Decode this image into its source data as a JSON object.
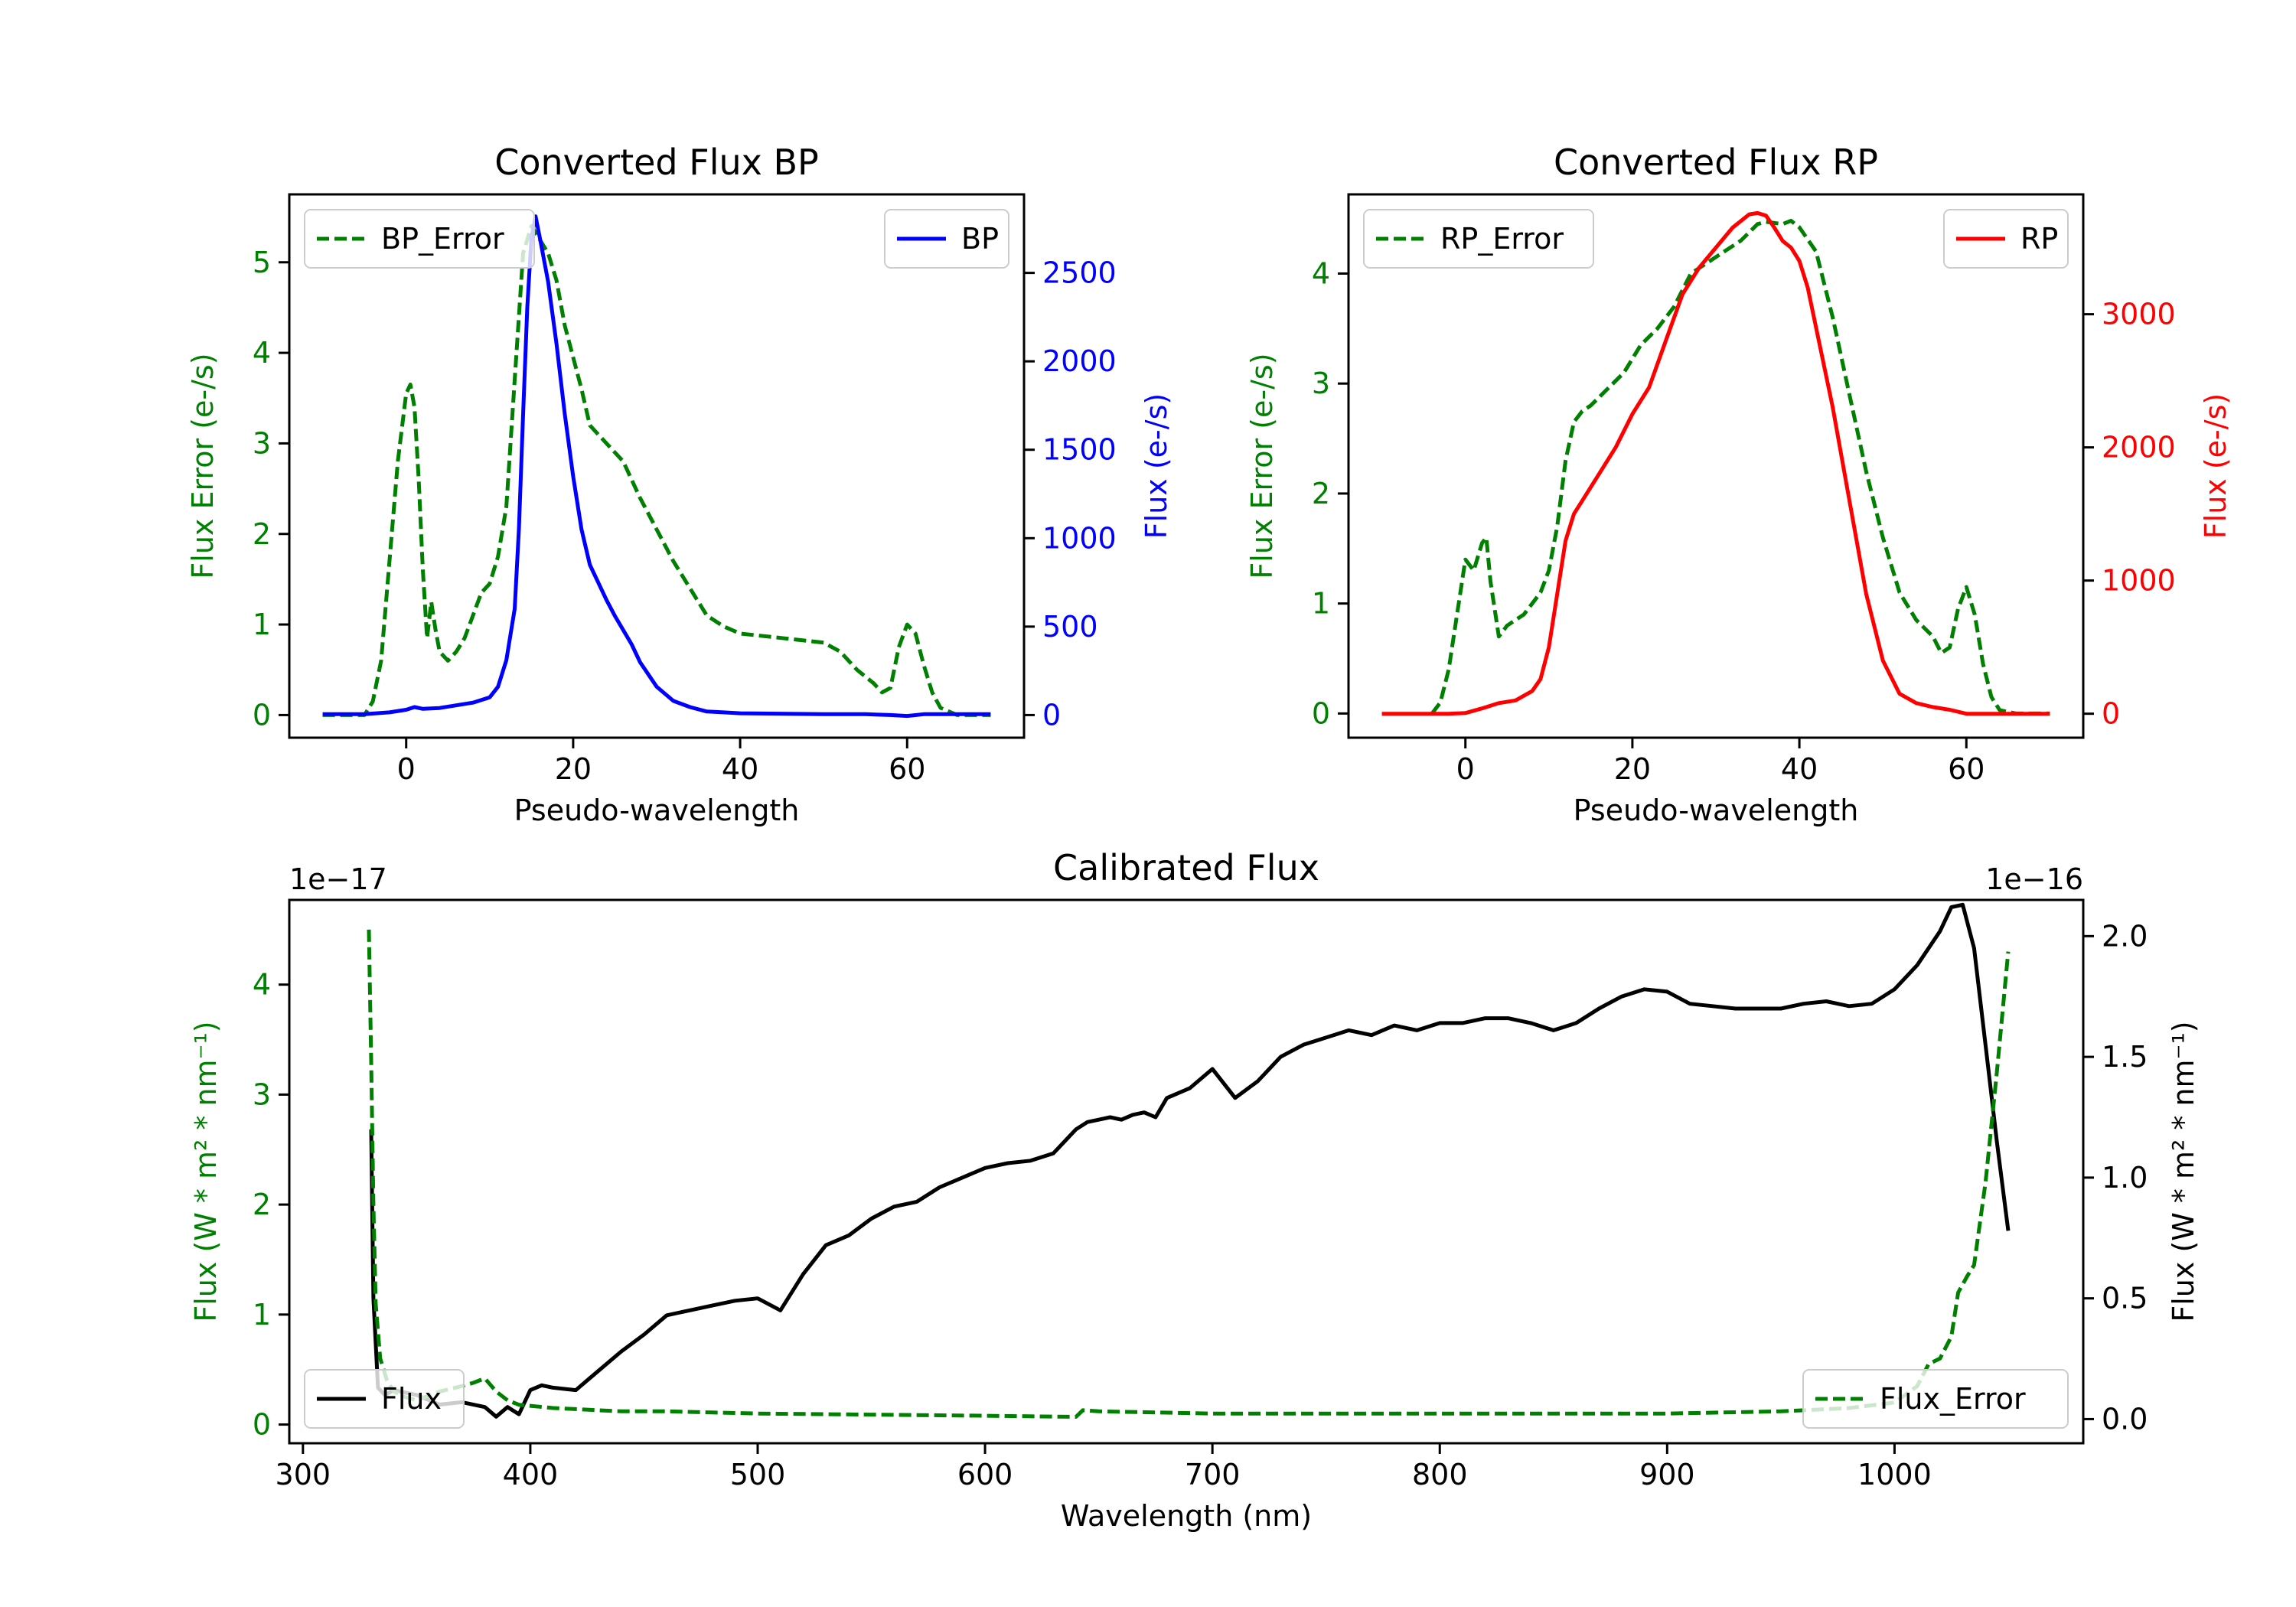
{
  "chart_data": [
    {
      "id": "bp",
      "type": "line",
      "title": "Converted Flux BP",
      "xlabel": "Pseudo-wavelength",
      "xlim": [
        -14,
        74
      ],
      "xticks": [
        0,
        20,
        40,
        60
      ],
      "xtick_labels": [
        "0",
        "20",
        "40",
        "60"
      ],
      "left_axis": {
        "label": "Flux Error (e-/s)",
        "color": "#008000",
        "ylim": [
          -0.25,
          5.75
        ],
        "ticks": [
          0,
          1,
          2,
          3,
          4,
          5
        ],
        "tick_labels": [
          "0",
          "1",
          "2",
          "3",
          "4",
          "5"
        ]
      },
      "right_axis": {
        "label": "Flux (e-/s)",
        "color": "#0000ff",
        "ylim": [
          -128,
          2944
        ],
        "ticks": [
          0,
          500,
          1000,
          1500,
          2000,
          2500
        ],
        "tick_labels": [
          "0",
          "500",
          "1000",
          "1500",
          "2000",
          "2500"
        ]
      },
      "series": [
        {
          "name": "BP_Error",
          "axis": "left",
          "color": "#008000",
          "dashed": true,
          "x": [
            -10,
            -5,
            -4,
            -3,
            -2,
            -1,
            0,
            0.5,
            1,
            1.5,
            2,
            2.5,
            3,
            3.5,
            4,
            5,
            6,
            7,
            8,
            9,
            10,
            11,
            12,
            13,
            14,
            15,
            16,
            17,
            18,
            19,
            20,
            21,
            22,
            23,
            24,
            25,
            26,
            27,
            28,
            30,
            32,
            34,
            36,
            38,
            40,
            45,
            50,
            52,
            54,
            56,
            57,
            58,
            59,
            60,
            61,
            62,
            63,
            64,
            66,
            70
          ],
          "y": [
            0,
            0,
            0.15,
            0.6,
            1.7,
            2.8,
            3.55,
            3.65,
            3.4,
            2.6,
            1.6,
            0.85,
            1.25,
            0.95,
            0.7,
            0.6,
            0.7,
            0.85,
            1.1,
            1.35,
            1.45,
            1.75,
            2.3,
            3.7,
            5.1,
            5.4,
            5.25,
            5.1,
            4.8,
            4.3,
            3.95,
            3.6,
            3.2,
            3.1,
            3.0,
            2.9,
            2.8,
            2.6,
            2.4,
            2.05,
            1.7,
            1.4,
            1.1,
            0.98,
            0.9,
            0.85,
            0.8,
            0.7,
            0.5,
            0.35,
            0.25,
            0.3,
            0.75,
            1.0,
            0.9,
            0.55,
            0.25,
            0.08,
            0,
            0
          ]
        },
        {
          "name": "BP",
          "axis": "right",
          "color": "#0000ff",
          "dashed": false,
          "x": [
            -10,
            -5,
            -2,
            0,
            1,
            2,
            4,
            6,
            8,
            10,
            11,
            12,
            13,
            13.5,
            14,
            14.5,
            15,
            15.5,
            16,
            17,
            18,
            19,
            20,
            21,
            22,
            23,
            24,
            25,
            26,
            27,
            28,
            30,
            32,
            34,
            36,
            38,
            40,
            50,
            55,
            58,
            60,
            62,
            65,
            70
          ],
          "y": [
            5,
            5,
            15,
            30,
            45,
            35,
            40,
            55,
            70,
            100,
            160,
            310,
            600,
            1050,
            1700,
            2300,
            2700,
            2820,
            2700,
            2450,
            2100,
            1700,
            1350,
            1050,
            850,
            750,
            650,
            560,
            480,
            400,
            300,
            160,
            80,
            45,
            20,
            15,
            10,
            5,
            5,
            0,
            -5,
            5,
            5,
            5
          ]
        }
      ],
      "legends": [
        {
          "position": "upper left",
          "entries": [
            "BP_Error"
          ]
        },
        {
          "position": "upper right",
          "entries": [
            "BP"
          ]
        }
      ]
    },
    {
      "id": "rp",
      "type": "line",
      "title": "Converted Flux RP",
      "xlabel": "Pseudo-wavelength",
      "xlim": [
        -14,
        74
      ],
      "xticks": [
        0,
        20,
        40,
        60
      ],
      "xtick_labels": [
        "0",
        "20",
        "40",
        "60"
      ],
      "left_axis": {
        "label": "Flux Error (e-/s)",
        "color": "#008000",
        "ylim": [
          -0.22,
          4.72
        ],
        "ticks": [
          0,
          1,
          2,
          3,
          4
        ],
        "tick_labels": [
          "0",
          "1",
          "2",
          "3",
          "4"
        ]
      },
      "right_axis": {
        "label": "Flux (e-/s)",
        "color": "#ff0000",
        "ylim": [
          -180,
          3900
        ],
        "ticks": [
          0,
          1000,
          2000,
          3000
        ],
        "tick_labels": [
          "0",
          "1000",
          "2000",
          "3000"
        ]
      },
      "series": [
        {
          "name": "RP_Error",
          "axis": "left",
          "color": "#008000",
          "dashed": true,
          "x": [
            -4,
            -3,
            -2,
            -1,
            0,
            1,
            2,
            2.5,
            3,
            4,
            5,
            6,
            7,
            8,
            9,
            10,
            11,
            12,
            13,
            14,
            15,
            17,
            19,
            21,
            23,
            25,
            27,
            29,
            31,
            33,
            35,
            36,
            37,
            38,
            39,
            40,
            42,
            44,
            46,
            48,
            50,
            52,
            54,
            56,
            57,
            58,
            59,
            60,
            61,
            62,
            63,
            64,
            66,
            70
          ],
          "y": [
            0,
            0.1,
            0.4,
            0.9,
            1.4,
            1.3,
            1.55,
            1.6,
            1.2,
            0.7,
            0.8,
            0.85,
            0.9,
            1.0,
            1.1,
            1.3,
            1.7,
            2.3,
            2.65,
            2.75,
            2.8,
            2.95,
            3.1,
            3.35,
            3.5,
            3.7,
            4.0,
            4.1,
            4.2,
            4.3,
            4.45,
            4.47,
            4.46,
            4.45,
            4.48,
            4.42,
            4.2,
            3.6,
            2.9,
            2.2,
            1.6,
            1.1,
            0.85,
            0.7,
            0.55,
            0.6,
            0.95,
            1.15,
            0.9,
            0.45,
            0.15,
            0.03,
            0,
            0
          ]
        },
        {
          "name": "RP",
          "axis": "right",
          "color": "#ff0000",
          "dashed": false,
          "x": [
            -10,
            -5,
            -2,
            0,
            2,
            4,
            6,
            8,
            9,
            10,
            11,
            12,
            13,
            14,
            16,
            18,
            20,
            22,
            24,
            26,
            28,
            30,
            32,
            34,
            35,
            36,
            37,
            38,
            39,
            40,
            41,
            42,
            44,
            46,
            48,
            50,
            52,
            54,
            56,
            58,
            60,
            62,
            65,
            70
          ],
          "y": [
            0,
            0,
            0,
            5,
            40,
            80,
            100,
            170,
            260,
            500,
            900,
            1300,
            1500,
            1600,
            1800,
            2000,
            2250,
            2450,
            2800,
            3150,
            3350,
            3500,
            3650,
            3750,
            3760,
            3740,
            3650,
            3550,
            3500,
            3400,
            3200,
            2900,
            2300,
            1600,
            900,
            400,
            150,
            80,
            50,
            30,
            0,
            0,
            0,
            0
          ]
        }
      ],
      "legends": [
        {
          "position": "upper left",
          "entries": [
            "RP_Error"
          ]
        },
        {
          "position": "upper right",
          "entries": [
            "RP"
          ]
        }
      ]
    },
    {
      "id": "cal",
      "type": "line",
      "title": "Calibrated Flux",
      "xlabel": "Wavelength (nm)",
      "xlim": [
        294,
        1083
      ],
      "xticks": [
        300,
        400,
        500,
        600,
        700,
        800,
        900,
        1000
      ],
      "xtick_labels": [
        "300",
        "400",
        "500",
        "600",
        "700",
        "800",
        "900",
        "1000"
      ],
      "left_axis": {
        "label": "Flux (W * m² * nm⁻¹)",
        "color": "#008000",
        "ylim": [
          -0.17,
          4.77
        ],
        "ticks": [
          0,
          1,
          2,
          3,
          4
        ],
        "tick_labels": [
          "0",
          "1",
          "2",
          "3",
          "4"
        ],
        "offset_text": "1e−17"
      },
      "right_axis": {
        "label": "Flux (W * m² * nm⁻¹)",
        "color": "#000000",
        "ylim": [
          -0.1,
          2.15
        ],
        "ticks": [
          0.0,
          0.5,
          1.0,
          1.5,
          2.0
        ],
        "tick_labels": [
          "0.0",
          "0.5",
          "1.0",
          "1.5",
          "2.0"
        ],
        "offset_text": "1e−16"
      },
      "series": [
        {
          "name": "Flux",
          "axis": "right",
          "color": "#000000",
          "dashed": false,
          "x": [
            330,
            331,
            333,
            336,
            340,
            350,
            360,
            370,
            380,
            385,
            390,
            395,
            400,
            405,
            410,
            420,
            430,
            440,
            450,
            460,
            470,
            480,
            490,
            500,
            510,
            520,
            530,
            540,
            550,
            560,
            570,
            580,
            590,
            600,
            610,
            620,
            630,
            640,
            645,
            650,
            655,
            660,
            665,
            670,
            675,
            680,
            690,
            700,
            710,
            720,
            730,
            740,
            750,
            760,
            770,
            780,
            790,
            800,
            810,
            820,
            830,
            840,
            850,
            860,
            870,
            880,
            890,
            900,
            910,
            920,
            930,
            940,
            950,
            960,
            970,
            980,
            990,
            1000,
            1010,
            1020,
            1025,
            1030,
            1035,
            1040,
            1045,
            1050
          ],
          "y": [
            1.2,
            0.5,
            0.13,
            0.1,
            0.12,
            0.1,
            0.06,
            0.07,
            0.05,
            0.01,
            0.05,
            0.02,
            0.12,
            0.14,
            0.13,
            0.12,
            0.2,
            0.28,
            0.35,
            0.43,
            0.45,
            0.47,
            0.49,
            0.5,
            0.45,
            0.6,
            0.72,
            0.76,
            0.83,
            0.88,
            0.9,
            0.96,
            1.0,
            1.04,
            1.06,
            1.07,
            1.1,
            1.2,
            1.23,
            1.24,
            1.25,
            1.24,
            1.26,
            1.27,
            1.25,
            1.33,
            1.37,
            1.45,
            1.33,
            1.4,
            1.5,
            1.55,
            1.58,
            1.61,
            1.59,
            1.63,
            1.61,
            1.64,
            1.64,
            1.66,
            1.66,
            1.64,
            1.61,
            1.64,
            1.7,
            1.75,
            1.78,
            1.77,
            1.72,
            1.71,
            1.7,
            1.7,
            1.7,
            1.72,
            1.73,
            1.71,
            1.72,
            1.78,
            1.88,
            2.02,
            2.12,
            2.13,
            1.95,
            1.55,
            1.15,
            0.78
          ]
        },
        {
          "name": "Flux_Error",
          "axis": "left",
          "color": "#008000",
          "dashed": true,
          "x": [
            329,
            330,
            331,
            332,
            334,
            337,
            340,
            345,
            350,
            360,
            370,
            375,
            380,
            385,
            390,
            395,
            400,
            410,
            420,
            430,
            440,
            450,
            460,
            480,
            500,
            550,
            600,
            640,
            643,
            650,
            700,
            800,
            900,
            950,
            980,
            1000,
            1010,
            1015,
            1020,
            1025,
            1028,
            1032,
            1035,
            1040,
            1045,
            1050
          ],
          "y": [
            4.5,
            3.3,
            2.0,
            1.1,
            0.6,
            0.4,
            0.3,
            0.25,
            0.22,
            0.3,
            0.35,
            0.38,
            0.42,
            0.3,
            0.22,
            0.18,
            0.17,
            0.15,
            0.14,
            0.13,
            0.12,
            0.12,
            0.12,
            0.11,
            0.1,
            0.09,
            0.08,
            0.07,
            0.13,
            0.12,
            0.1,
            0.1,
            0.1,
            0.12,
            0.15,
            0.2,
            0.35,
            0.55,
            0.6,
            0.8,
            1.2,
            1.35,
            1.45,
            2.2,
            3.2,
            4.3
          ]
        }
      ],
      "legends": [
        {
          "position": "lower left",
          "entries": [
            "Flux"
          ]
        },
        {
          "position": "lower right",
          "entries": [
            "Flux_Error"
          ]
        }
      ]
    }
  ]
}
